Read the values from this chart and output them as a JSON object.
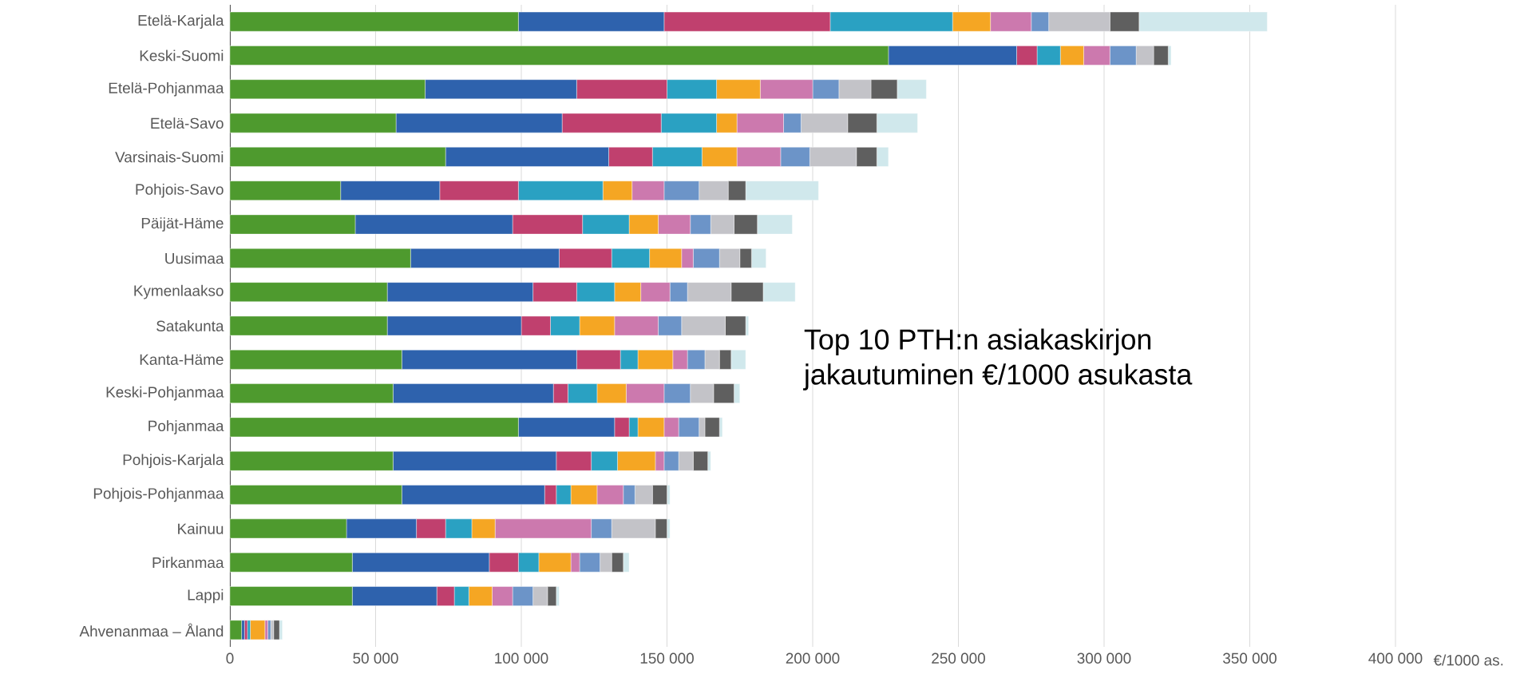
{
  "chart_data": {
    "type": "bar",
    "orientation": "horizontal",
    "stacked": true,
    "grid": "x",
    "xlabel": "€/1000 as.",
    "annotations": [
      "Top 10 PTH:n asiakaskirjon",
      "jakautuminen €/1000 asukasta"
    ],
    "categories": [
      "Etelä-Karjala",
      "Keski-Suomi",
      "Etelä-Pohjanmaa",
      "Etelä-Savo",
      "Varsinais-Suomi",
      "Pohjois-Savo",
      "Päijät-Häme",
      "Uusimaa",
      "Kymenlaakso",
      "Satakunta",
      "Kanta-Häme",
      "Keski-Pohjanmaa",
      "Pohjanmaa",
      "Pohjois-Karjala",
      "Pohjois-Pohjanmaa",
      "Kainuu",
      "Pirkanmaa",
      "Lappi",
      "Ahvenanmaa – Åland"
    ],
    "xlim": [
      0,
      400000
    ],
    "xticks": [
      0,
      {
        "value": 50000,
        "label": "50 000"
      },
      {
        "value": 100000,
        "label": "100 000"
      },
      {
        "value": 150000,
        "label": "150 000"
      },
      {
        "value": 200000,
        "label": "200 000"
      },
      {
        "value": 250000,
        "label": "250 000"
      },
      {
        "value": 300000,
        "label": "300 000"
      },
      {
        "value": 350000,
        "label": "350 000"
      },
      {
        "value": 400000,
        "label": "400 000"
      }
    ],
    "series": [
      {
        "color": "#4e9a2e",
        "values": [
          99000,
          226000,
          67000,
          57000,
          74000,
          38000,
          43000,
          62000,
          54000,
          54000,
          59000,
          56000,
          99000,
          56000,
          59000,
          40000,
          42000,
          42000,
          4000
        ]
      },
      {
        "color": "#2e62ad",
        "values": [
          50000,
          44000,
          52000,
          57000,
          56000,
          34000,
          54000,
          51000,
          50000,
          46000,
          60000,
          55000,
          33000,
          56000,
          49000,
          24000,
          47000,
          29000,
          1000
        ]
      },
      {
        "color": "#c0406e",
        "values": [
          57000,
          7000,
          31000,
          34000,
          15000,
          27000,
          24000,
          18000,
          15000,
          10000,
          15000,
          5000,
          5000,
          12000,
          4000,
          10000,
          10000,
          6000,
          1000
        ]
      },
      {
        "color": "#2aa1c2",
        "values": [
          42000,
          8000,
          17000,
          19000,
          17000,
          29000,
          16000,
          13000,
          13000,
          10000,
          6000,
          10000,
          3000,
          9000,
          5000,
          9000,
          7000,
          5000,
          1000
        ]
      },
      {
        "color": "#f5a623",
        "values": [
          13000,
          8000,
          15000,
          7000,
          12000,
          10000,
          10000,
          11000,
          9000,
          12000,
          12000,
          10000,
          9000,
          13000,
          9000,
          8000,
          11000,
          8000,
          5000
        ]
      },
      {
        "color": "#cc79ae",
        "values": [
          14000,
          9000,
          18000,
          16000,
          15000,
          11000,
          11000,
          4000,
          10000,
          15000,
          5000,
          13000,
          5000,
          3000,
          9000,
          33000,
          3000,
          7000,
          1000
        ]
      },
      {
        "color": "#6c94c8",
        "values": [
          6000,
          9000,
          9000,
          6000,
          10000,
          12000,
          7000,
          9000,
          6000,
          8000,
          6000,
          9000,
          7000,
          5000,
          4000,
          7000,
          7000,
          7000,
          1000
        ]
      },
      {
        "color": "#c3c3c8",
        "values": [
          21000,
          6000,
          11000,
          16000,
          16000,
          10000,
          8000,
          7000,
          15000,
          15000,
          5000,
          8000,
          2000,
          5000,
          6000,
          15000,
          4000,
          5000,
          1000
        ]
      },
      {
        "color": "#5f5f5f",
        "values": [
          10000,
          5000,
          9000,
          10000,
          7000,
          6000,
          8000,
          4000,
          11000,
          7000,
          4000,
          7000,
          5000,
          5000,
          5000,
          4000,
          4000,
          3000,
          2000
        ]
      },
      {
        "color": "#d0e8ec",
        "values": [
          44000,
          1000,
          10000,
          14000,
          4000,
          25000,
          12000,
          5000,
          11000,
          1000,
          5000,
          2000,
          1000,
          1000,
          1000,
          1000,
          2000,
          1000,
          1000
        ]
      }
    ]
  }
}
